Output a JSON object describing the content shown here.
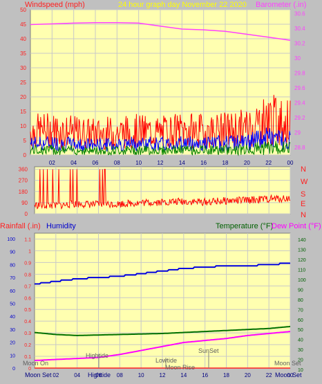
{
  "header": {
    "windspeed_label": "Windspeed (mph)",
    "graph_title": "24 hour graph day   November 22 2020",
    "barometer_label": "Barometer (.in)"
  },
  "colors": {
    "background": "#c0c0c0",
    "plot_bg": "#ffffb0",
    "grid": "#c8c8c8",
    "axis_red": "#ff2020",
    "wind_gust": "#ff0000",
    "wind_avg": "#0000ff",
    "wind_low": "#008000",
    "barometer": "#ff40ff",
    "direction": "#ff0000",
    "humidity": "#0000e0",
    "temperature": "#007000",
    "dewpoint": "#ff00ff",
    "header_yellow": "#ffff00",
    "humidity_label": "#0000cc",
    "temperature_label": "#006000",
    "moon_label": "#000080"
  },
  "wind_panel": {
    "left_ticks": [
      "50",
      "45",
      "40",
      "35",
      "30",
      "25",
      "20",
      "15",
      "10",
      "5",
      "0"
    ],
    "right_ticks": [
      "30.6",
      "30.4",
      "30.2",
      "30",
      "29.8",
      "29.6",
      "29.4",
      "29.2",
      "29",
      "28.8"
    ],
    "x_ticks": [
      "02",
      "04",
      "06",
      "08",
      "10",
      "12",
      "14",
      "16",
      "18",
      "20",
      "22",
      "00"
    ]
  },
  "direction_panel": {
    "left_ticks": [
      "360",
      "270",
      "180",
      "90",
      "0"
    ],
    "compass": [
      "N",
      "W",
      "S",
      "E",
      "N"
    ]
  },
  "lower_panel": {
    "rain_label": "Rainfall (.in)",
    "humidity_label": "Humidity",
    "temp_label": "Temperature (°F)",
    "dew_label": "Dew Point (°F)",
    "humidity_ticks": [
      "100",
      "90",
      "80",
      "70",
      "60",
      "50",
      "40",
      "30",
      "20",
      "10",
      "0"
    ],
    "rain_ticks": [
      "1.1",
      "1",
      "0.9",
      "0.8",
      "0.7",
      "0.6",
      "0.5",
      "0.4",
      "0.3",
      "0.2",
      "0.1",
      "0"
    ],
    "temp_ticks": [
      "140",
      "130",
      "120",
      "110",
      "100",
      "90",
      "80",
      "70",
      "60",
      "50",
      "40",
      "30",
      "20",
      "10"
    ],
    "x_ticks": [
      "02",
      "04",
      "06",
      "08",
      "10",
      "12",
      "14",
      "16",
      "18",
      "20",
      "22",
      "00"
    ],
    "annotations": {
      "moon_set_left": "Moon Set",
      "moon_set_right": "Moon Set",
      "hightide": "Hightide",
      "hightide_bottom": "Hightide",
      "lowtide": "Lowtide",
      "moon_rise": "Moon Rise",
      "sunset": "SunSet",
      "moon_set_bottom": "Moon Set",
      "moon_on": "Moon On"
    }
  },
  "chart_data": [
    {
      "type": "line",
      "title": "24 hour graph day   November 22 2020",
      "x": [
        "00",
        "02",
        "04",
        "06",
        "08",
        "10",
        "12",
        "14",
        "16",
        "18",
        "20",
        "22",
        "00"
      ],
      "ylabel": "Windspeed (mph)",
      "ylim": [
        0,
        50
      ],
      "y2label": "Barometer (.in)",
      "y2lim": [
        28.7,
        30.65
      ],
      "grid": true,
      "series": [
        {
          "name": "Windspeed (mph)",
          "axis": "left",
          "values": [
            10.5,
            11,
            10,
            9.5,
            10,
            10.5,
            10,
            11,
            10.5,
            11,
            12,
            16,
            14
          ]
        },
        {
          "name": "Barometer (.in)",
          "axis": "right",
          "values": [
            30.45,
            30.46,
            30.47,
            30.475,
            30.475,
            30.47,
            30.43,
            30.39,
            30.38,
            30.36,
            30.32,
            30.28,
            30.24
          ]
        }
      ]
    },
    {
      "type": "line",
      "x": [
        "00",
        "02",
        "04",
        "06",
        "08",
        "10",
        "12",
        "14",
        "16",
        "18",
        "20",
        "22",
        "00"
      ],
      "ylim": [
        0,
        360
      ],
      "grid": true,
      "series": [
        {
          "name": "Wind Direction",
          "values": [
            70,
            65,
            80,
            75,
            80,
            90,
            95,
            100,
            95,
            105,
            110,
            120,
            125
          ]
        }
      ]
    },
    {
      "type": "line",
      "x": [
        "00",
        "02",
        "04",
        "06",
        "08",
        "10",
        "12",
        "14",
        "16",
        "18",
        "20",
        "22",
        "00"
      ],
      "grid": true,
      "series": [
        {
          "name": "Humidity",
          "axis": "humidity",
          "ylim": [
            0,
            100
          ],
          "values": [
            65,
            67,
            69,
            70,
            71,
            73,
            75,
            77,
            78,
            79,
            79,
            80,
            81
          ]
        },
        {
          "name": "Temperature (°F)",
          "axis": "temp",
          "ylim": [
            10,
            145
          ],
          "values": [
            47,
            45,
            44,
            44.5,
            45,
            45.5,
            46,
            47,
            48,
            49,
            50,
            51,
            53
          ]
        },
        {
          "name": "Dew Point (°F)",
          "axis": "temp",
          "ylim": [
            10,
            145
          ],
          "values": [
            19,
            20,
            21,
            22,
            25,
            29,
            33,
            37,
            39,
            41,
            44,
            46,
            48
          ]
        },
        {
          "name": "Rainfall (.in)",
          "axis": "rain",
          "ylim": [
            0,
            1.15
          ],
          "values": [
            0,
            0,
            0,
            0,
            0,
            0,
            0,
            0,
            0,
            0,
            0,
            0,
            0
          ]
        }
      ]
    }
  ]
}
